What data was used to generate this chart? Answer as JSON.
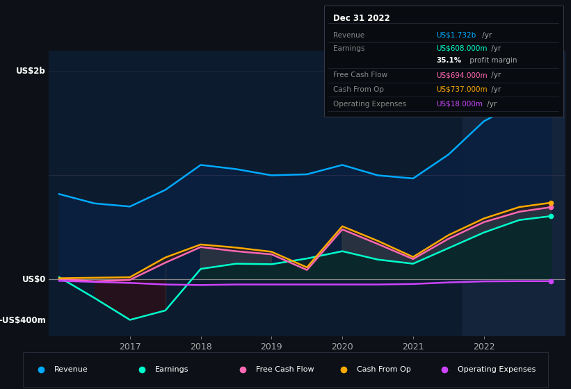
{
  "background_color": "#0d1117",
  "plot_bg_color": "#0d1b2e",
  "x": [
    2016.0,
    2016.5,
    2017.0,
    2017.5,
    2018.0,
    2018.5,
    2019.0,
    2019.5,
    2020.0,
    2020.5,
    2021.0,
    2021.5,
    2022.0,
    2022.5,
    2022.95
  ],
  "revenue": [
    820,
    730,
    700,
    860,
    1100,
    1060,
    1000,
    1010,
    1100,
    1000,
    970,
    1200,
    1520,
    1700,
    1732
  ],
  "earnings": [
    20,
    -180,
    -390,
    -300,
    100,
    150,
    145,
    200,
    270,
    190,
    150,
    300,
    450,
    570,
    608
  ],
  "free_cash_flow": [
    5,
    -20,
    -5,
    160,
    310,
    270,
    240,
    90,
    480,
    340,
    195,
    390,
    550,
    650,
    694
  ],
  "cash_from_op": [
    10,
    15,
    20,
    210,
    335,
    305,
    265,
    115,
    510,
    370,
    215,
    425,
    585,
    695,
    737
  ],
  "operating_expenses": [
    -15,
    -25,
    -35,
    -50,
    -55,
    -50,
    -50,
    -50,
    -50,
    -50,
    -45,
    -30,
    -20,
    -18,
    -18
  ],
  "revenue_color": "#00aaff",
  "earnings_color": "#00ffcc",
  "fcf_color": "#ff69b4",
  "cashop_color": "#ffaa00",
  "opex_color": "#cc44ff",
  "zero_line_color": "#888888",
  "text_color": "#aaaaaa",
  "ylabel_top": "US$2b",
  "ylabel_zero": "US$0",
  "ylabel_neg": "-US$400m",
  "ylim": [
    -550,
    2200
  ],
  "xlim": [
    2015.85,
    2023.15
  ],
  "xticks": [
    2017,
    2018,
    2019,
    2020,
    2021,
    2022
  ],
  "highlight_x_start": 2021.7,
  "highlight_x_end": 2023.15,
  "info_box": {
    "title": "Dec 31 2022",
    "rows": [
      {
        "label": "Revenue",
        "value": "US$1.732b",
        "unit": " /yr",
        "value_color": "#00aaff"
      },
      {
        "label": "Earnings",
        "value": "US$608.000m",
        "unit": " /yr",
        "value_color": "#00ffcc"
      },
      {
        "label": "",
        "value": "35.1%",
        "unit": " profit margin",
        "value_color": "#ffffff"
      },
      {
        "label": "Free Cash Flow",
        "value": "US$694.000m",
        "unit": " /yr",
        "value_color": "#ff69b4"
      },
      {
        "label": "Cash From Op",
        "value": "US$737.000m",
        "unit": " /yr",
        "value_color": "#ffaa00"
      },
      {
        "label": "Operating Expenses",
        "value": "US$18.000m",
        "unit": " /yr",
        "value_color": "#cc44ff"
      }
    ]
  },
  "legend": [
    {
      "label": "Revenue",
      "color": "#00aaff"
    },
    {
      "label": "Earnings",
      "color": "#00ffcc"
    },
    {
      "label": "Free Cash Flow",
      "color": "#ff69b4"
    },
    {
      "label": "Cash From Op",
      "color": "#ffaa00"
    },
    {
      "label": "Operating Expenses",
      "color": "#cc44ff"
    }
  ]
}
